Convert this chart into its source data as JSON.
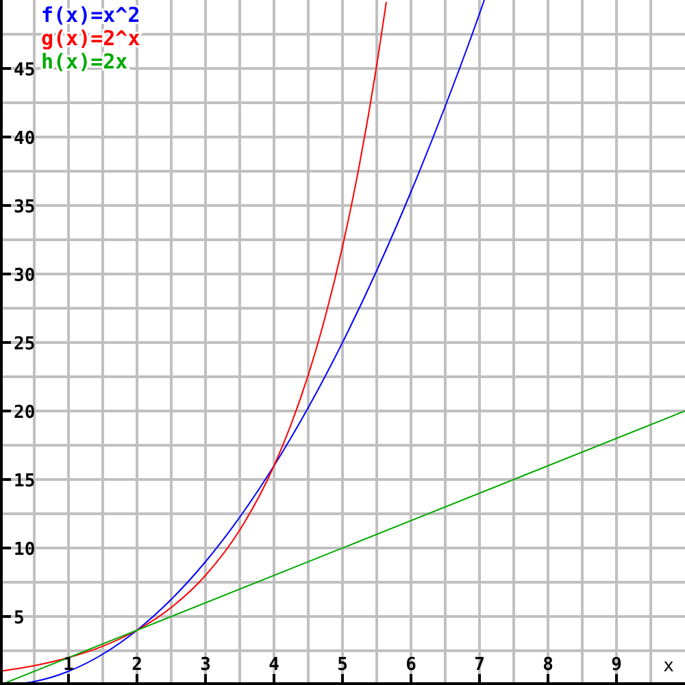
{
  "chart_data": {
    "type": "line",
    "xlabel": "x",
    "xlim": [
      0,
      10
    ],
    "ylim": [
      0,
      50
    ],
    "xticks": [
      {
        "value": 0.5,
        "label": null
      },
      1,
      {
        "value": 1.5,
        "label": null
      },
      2,
      {
        "value": 2.5,
        "label": null
      },
      3,
      {
        "value": 3.5,
        "label": null
      },
      4,
      {
        "value": 4.5,
        "label": null
      },
      5,
      {
        "value": 5.5,
        "label": null
      },
      6,
      {
        "value": 6.5,
        "label": null
      },
      7,
      {
        "value": 7.5,
        "label": null
      },
      8,
      {
        "value": 8.5,
        "label": null
      },
      9,
      {
        "value": 9.5,
        "label": null
      }
    ],
    "yticks": [
      {
        "value": 2.5,
        "label": null
      },
      5,
      {
        "value": 7.5,
        "label": null
      },
      10,
      {
        "value": 12.5,
        "label": null
      },
      15,
      {
        "value": 17.5,
        "label": null
      },
      20,
      {
        "value": 22.5,
        "label": null
      },
      25,
      {
        "value": 27.5,
        "label": null
      },
      30,
      {
        "value": 32.5,
        "label": null
      },
      35,
      {
        "value": 37.5,
        "label": null
      },
      40,
      {
        "value": 42.5,
        "label": null
      },
      45,
      {
        "value": 47.5,
        "label": null
      }
    ],
    "grid": true,
    "legend": "top left",
    "marker": "none",
    "line_style": "solid",
    "series": [
      {
        "name": "f(x)=x^2",
        "color": "#0000ff",
        "x": [
          0,
          0.5,
          1,
          1.5,
          2,
          2.5,
          3,
          3.5,
          4,
          4.5,
          5,
          5.5,
          6,
          6.5,
          7,
          7.07
        ],
        "values": [
          0,
          0.25,
          1,
          2.25,
          4,
          6.25,
          9,
          12.25,
          16,
          20.25,
          25,
          30.25,
          36,
          42.25,
          49,
          50
        ]
      },
      {
        "name": "g(x)=2^x",
        "color": "#ff0000",
        "x": [
          0,
          0.5,
          1,
          1.5,
          2,
          2.5,
          3,
          3.5,
          4,
          4.25,
          4.5,
          4.75,
          5,
          5.25,
          5.5,
          5.64
        ],
        "values": [
          1,
          1.41,
          2,
          2.83,
          4,
          5.66,
          8,
          11.31,
          16,
          19.03,
          22.63,
          26.91,
          32,
          38.05,
          45.25,
          49.87
        ]
      },
      {
        "name": "h(x)=2x",
        "color": "#00aa00",
        "x": [
          0,
          10
        ],
        "values": [
          0,
          20
        ]
      }
    ]
  }
}
